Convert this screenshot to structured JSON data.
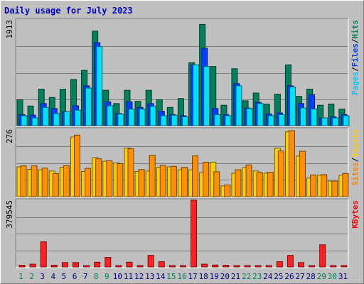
{
  "chart_data": {
    "type": "bar",
    "title": "Daily usage for July 2023",
    "categories": [
      "1",
      "2",
      "3",
      "4",
      "5",
      "6",
      "7",
      "8",
      "9",
      "10",
      "11",
      "12",
      "13",
      "14",
      "15",
      "16",
      "17",
      "18",
      "19",
      "20",
      "21",
      "22",
      "23",
      "24",
      "25",
      "26",
      "27",
      "28",
      "29",
      "30",
      "31"
    ],
    "weekend_days": [
      "1",
      "2",
      "8",
      "9",
      "15",
      "16",
      "22",
      "23",
      "29",
      "30"
    ],
    "day_color_weekday": "#000080",
    "day_color_weekend": "#00805c",
    "panels": [
      {
        "id": "hits",
        "ymax": 1913,
        "ymax_label": "1913",
        "label_parts": [
          {
            "text": "Pages",
            "color": "#00c8ff"
          },
          {
            "text": "/",
            "color": "#000000"
          },
          {
            "text": "Files",
            "color": "#0040ff"
          },
          {
            "text": "/",
            "color": "#000000"
          },
          {
            "text": "Hits",
            "color": "#008060"
          }
        ],
        "series": [
          {
            "name": "Hits",
            "color": "#00805c",
            "values": [
              470,
              355,
              660,
              510,
              660,
              835,
              1000,
              1710,
              640,
              400,
              640,
              440,
              640,
              470,
              330,
              490,
              1140,
              1830,
              1070,
              370,
              1030,
              450,
              590,
              390,
              570,
              1100,
              530,
              660,
              370,
              390,
              300
            ]
          },
          {
            "name": "Files",
            "color": "#0040ff",
            "values": [
              200,
              190,
              400,
              310,
              250,
              360,
              720,
              1500,
              430,
              220,
              430,
              330,
              400,
              260,
              200,
              180,
              1100,
              1400,
              310,
              200,
              760,
              320,
              420,
              210,
              230,
              720,
              400,
              560,
              140,
              160,
              200
            ]
          },
          {
            "name": "Pages",
            "color": "#00e0ff",
            "values": [
              180,
              140,
              330,
              220,
              250,
              280,
              680,
              1430,
              360,
              210,
              300,
              300,
              350,
              180,
              190,
              160,
              1100,
              1070,
              200,
              180,
              720,
              310,
              400,
              180,
              200,
              700,
              320,
              300,
              140,
              140,
              180
            ]
          }
        ]
      },
      {
        "id": "visits",
        "ymax": 276,
        "ymax_label": "276",
        "label_parts": [
          {
            "text": "Sites",
            "color": "#ff8000"
          },
          {
            "text": "/",
            "color": "#000000"
          },
          {
            "text": "Visits",
            "color": "#ffcc00"
          }
        ],
        "series": [
          {
            "name": "Visits",
            "color": "#ffd000",
            "values": [
              122,
              112,
              110,
              105,
              120,
              244,
              103,
              160,
              145,
              138,
              199,
              103,
              105,
              120,
              122,
              110,
              110,
              99,
              141,
              44,
              96,
              119,
              105,
              96,
              198,
              265,
              166,
              76,
              88,
              64,
              88
            ]
          },
          {
            "name": "Sites",
            "color": "#ff9000",
            "values": [
              126,
              126,
              117,
              95,
              127,
              252,
              116,
              155,
              147,
              135,
              196,
              111,
              169,
              128,
              124,
              120,
              167,
              141,
              102,
              48,
              110,
              130,
              99,
              100,
              187,
              270,
              186,
              89,
              90,
              64,
              95
            ]
          }
        ]
      },
      {
        "id": "kbytes",
        "ymax": 379545,
        "ymax_label": "379545",
        "label_parts": [
          {
            "text": "KBytes",
            "color": "#ff0000"
          }
        ],
        "series": [
          {
            "name": "KBytes",
            "color": "#ff2020",
            "values": [
              10000,
              16000,
              143000,
              10000,
              25000,
              25000,
              8000,
              27000,
              54000,
              8000,
              27000,
              8000,
              66000,
              30000,
              8000,
              8000,
              379545,
              16000,
              11000,
              10000,
              8000,
              8000,
              8000,
              8000,
              30000,
              66000,
              25000,
              8000,
              126000,
              8000,
              8000
            ]
          }
        ]
      }
    ]
  }
}
